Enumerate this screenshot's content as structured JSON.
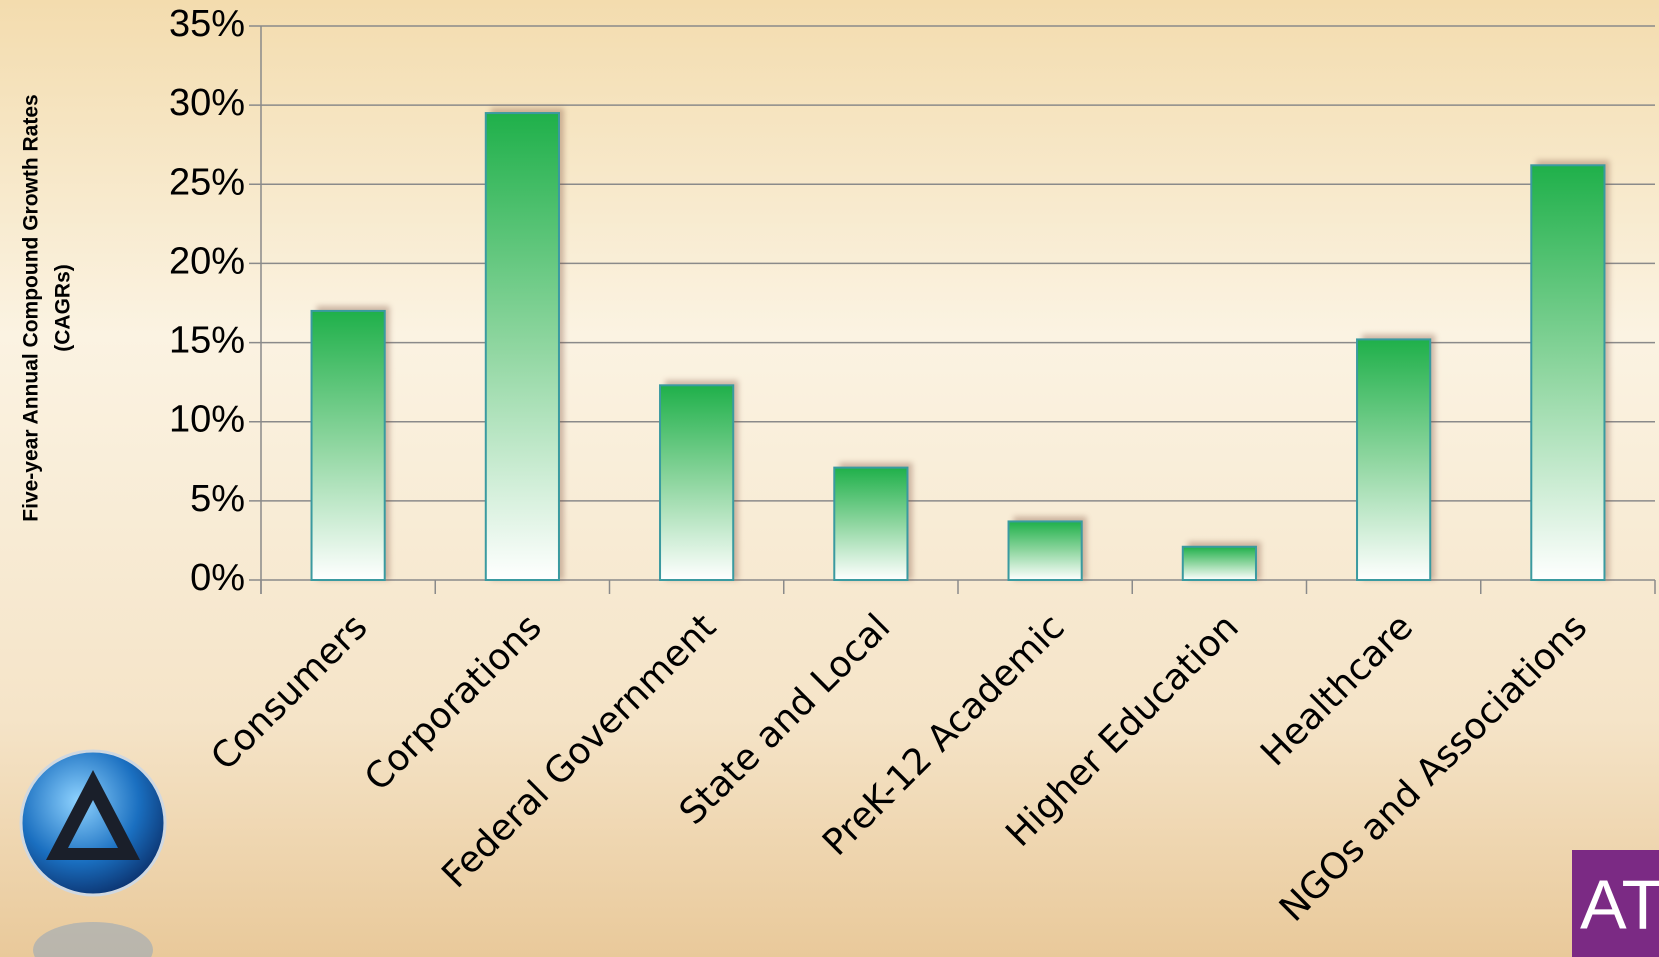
{
  "chart_data": {
    "type": "bar",
    "y_label": [
      "Five-year Annual Compound Growth Rates",
      "(CAGRs)"
    ],
    "categories": [
      "Consumers",
      "Corporations",
      "Federal Government",
      "State and Local",
      "PreK-12 Academic",
      "Higher Education",
      "Healthcare",
      "NGOs and Associations"
    ],
    "values": [
      17,
      29.5,
      12.3,
      7.1,
      3.7,
      2.1,
      15.2,
      26.2
    ],
    "color": "#22b04a",
    "ylim": [
      0,
      35
    ],
    "yticks": [
      {
        "value": 0,
        "label": "0%"
      },
      {
        "value": 5,
        "label": "5%"
      },
      {
        "value": 10,
        "label": "10%"
      },
      {
        "value": 15,
        "label": "15%"
      },
      {
        "value": 20,
        "label": "20%"
      },
      {
        "value": 25,
        "label": "25%"
      },
      {
        "value": 30,
        "label": "30%"
      },
      {
        "value": 35,
        "label": "35%"
      }
    ],
    "grid": true
  },
  "brand": "AT"
}
